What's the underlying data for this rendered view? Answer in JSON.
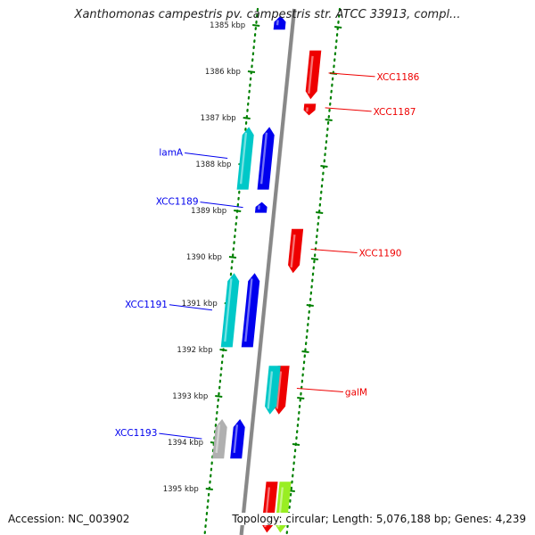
{
  "title": "Xanthomonas campestris pv. campestris str. ATCC 33913, compl...",
  "accession": "Accession: NC_003902",
  "topology": "Topology: circular; Length: 5,076,188 bp; Genes: 4,239",
  "colors": {
    "forward_strand": "#0000ee",
    "reverse_strand": "#ee0000",
    "rna": "#00c8c8",
    "pseudo": "#b0b0b0",
    "other": "#99ee22",
    "backbone": "#888888",
    "tick": "#008000",
    "label_text": "#222222"
  },
  "ruler": {
    "unit": "kbp",
    "ticks": [
      {
        "kbp": 1385,
        "label": "1385 kbp"
      },
      {
        "kbp": 1386,
        "label": "1386 kbp"
      },
      {
        "kbp": 1387,
        "label": "1387 kbp"
      },
      {
        "kbp": 1388,
        "label": "1388 kbp"
      },
      {
        "kbp": 1389,
        "label": "1389 kbp"
      },
      {
        "kbp": 1390,
        "label": "1390 kbp"
      },
      {
        "kbp": 1391,
        "label": "1391 kbp"
      },
      {
        "kbp": 1392,
        "label": "1392 kbp"
      },
      {
        "kbp": 1393,
        "label": "1393 kbp"
      },
      {
        "kbp": 1394,
        "label": "1394 kbp"
      },
      {
        "kbp": 1395,
        "label": "1395 kbp"
      }
    ]
  },
  "genes": [
    {
      "name": "",
      "strand": "+",
      "kind": "cds",
      "start": 1384.8,
      "end": 1385.1
    },
    {
      "name": "XCC1186",
      "strand": "-",
      "kind": "cds",
      "start": 1385.55,
      "end": 1386.6,
      "label_side": "right"
    },
    {
      "name": "XCC1187",
      "strand": "-",
      "kind": "cds",
      "start": 1386.7,
      "end": 1386.95,
      "label_side": "right"
    },
    {
      "name": "lamA",
      "strand": "+",
      "kind": "rna",
      "start": 1387.2,
      "end": 1388.55,
      "label_side": "left"
    },
    {
      "name": "",
      "strand": "+",
      "kind": "cds",
      "start": 1387.2,
      "end": 1388.55
    },
    {
      "name": "XCC1189",
      "strand": "+",
      "kind": "cds",
      "start": 1388.82,
      "end": 1389.05,
      "label_side": "left"
    },
    {
      "name": "XCC1190",
      "strand": "-",
      "kind": "cds",
      "start": 1389.4,
      "end": 1390.35,
      "label_side": "right"
    },
    {
      "name": "XCC1191",
      "strand": "+",
      "kind": "rna",
      "start": 1390.35,
      "end": 1391.95,
      "label_side": "left"
    },
    {
      "name": "",
      "strand": "+",
      "kind": "cds",
      "start": 1390.35,
      "end": 1391.95
    },
    {
      "name": "galM",
      "strand": "-",
      "kind": "cds",
      "start": 1392.35,
      "end": 1393.4,
      "label_side": "right"
    },
    {
      "name": "",
      "strand": "-",
      "kind": "rna",
      "start": 1392.35,
      "end": 1393.4
    },
    {
      "name": "XCC1193",
      "strand": "+",
      "kind": "pseudo",
      "start": 1393.5,
      "end": 1394.35,
      "label_side": "left"
    },
    {
      "name": "",
      "strand": "+",
      "kind": "cds",
      "start": 1393.5,
      "end": 1394.35
    },
    {
      "name": "",
      "strand": "-",
      "kind": "cds",
      "start": 1394.85,
      "end": 1395.95
    },
    {
      "name": "",
      "strand": "-",
      "kind": "other",
      "start": 1394.85,
      "end": 1395.95
    }
  ]
}
